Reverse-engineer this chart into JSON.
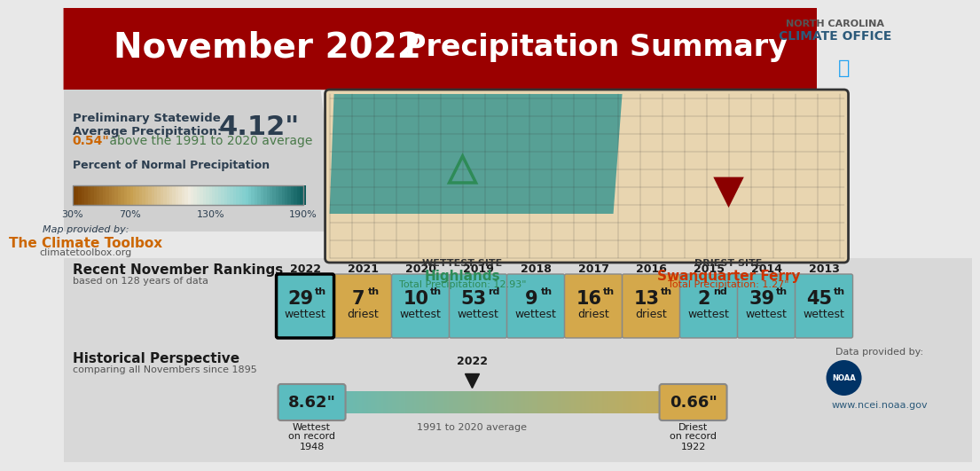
{
  "title_left": "November 2022",
  "title_right": "Precipitation Summary",
  "bg_color": "#e8e8e8",
  "header_bg_dark": "#9b0000",
  "header_bg_light": "#c0392b",
  "avg_precip_label": "Preliminary Statewide\nAverage Precipitation:",
  "avg_precip_value": "4.12\"",
  "departure_text": "0.54\" above the 1991 to 2020 average",
  "departure_color": "#4a7a4a",
  "departure_value_color": "#cc6600",
  "colorbar_label": "Percent of Normal Precipitation",
  "colorbar_ticks": [
    "30%",
    "70%",
    "130%",
    "190%"
  ],
  "colorbar_colors": [
    "#7b4a1e",
    "#c8a96e",
    "#f5f0e8",
    "#b3d9d9",
    "#1a7a7a"
  ],
  "map_credit": "Map provided by:\nThe Climate Toolbox\nclimatetoolbox.org",
  "map_credit_color": "#cc6600",
  "wettest_site_label": "WETTEST SITE",
  "wettest_site_name": "Highlands",
  "wettest_site_precip": "Total Precipitation: 12.93\"",
  "wettest_color": "#2e8b57",
  "driest_site_label": "DRIEST SITE",
  "driest_site_name": "Swanquarter Ferry",
  "driest_site_precip": "Total Precipitation: 1.27\"",
  "driest_color": "#cc3300",
  "rankings_title": "Recent November Rankings",
  "rankings_subtitle": "based on 128 years of data",
  "ranking_years": [
    "2022",
    "2021",
    "2020",
    "2019",
    "2018",
    "2017",
    "2016",
    "2015",
    "2014",
    "2013"
  ],
  "ranking_values": [
    "29th\nwettest",
    "7th\ndriest",
    "10th\nwettest",
    "53rd\nwettest",
    "9th\nwettest",
    "16th\ndriest",
    "13th\ndriest",
    "2nd\nwettest",
    "39th\nwettest",
    "45th\nwettest"
  ],
  "ranking_colors": [
    "#5bbcbf",
    "#d4a84b",
    "#5bbcbf",
    "#5bbcbf",
    "#5bbcbf",
    "#d4a84b",
    "#d4a84b",
    "#5bbcbf",
    "#5bbcbf",
    "#5bbcbf"
  ],
  "ranking_superscripts": [
    "th",
    "th",
    "th",
    "rd",
    "th",
    "th",
    "th",
    "nd",
    "th",
    "th"
  ],
  "ranking_numbers": [
    "29",
    "7",
    "10",
    "53",
    "9",
    "16",
    "13",
    "2",
    "39",
    "45"
  ],
  "ranking_labels": [
    "wettest",
    "driest",
    "wettest",
    "wettest",
    "wettest",
    "driest",
    "driest",
    "wettest",
    "wettest",
    "wettest"
  ],
  "historical_title": "Historical Perspective",
  "historical_subtitle": "comparing all Novembers since 1895",
  "wettest_record_value": "8.62\"",
  "wettest_record_year": "1948",
  "driest_record_value": "0.66\"",
  "driest_record_year": "1922",
  "current_year": "2022",
  "avg_label": "1991 to 2020 average",
  "gradient_wet_color": "#5bbcbf",
  "gradient_dry_color": "#d4a84b",
  "ncei_url": "www.ncei.noaa.gov",
  "data_credit": "Data provided by:",
  "twitter_color": "#1da1f2",
  "nc_climate_office": "NORTH CAROLINA\nCLIMATEOFFICE"
}
